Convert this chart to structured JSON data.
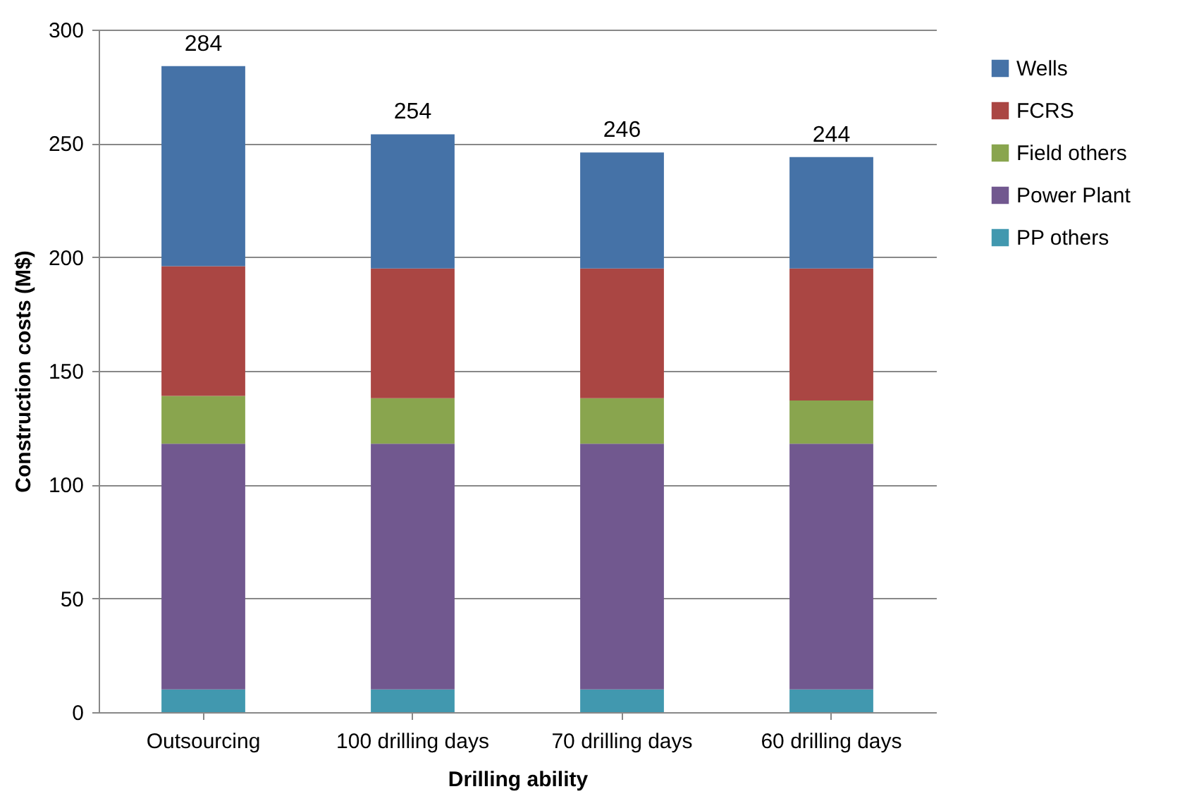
{
  "chart_data": {
    "type": "bar",
    "stacked": true,
    "xlabel": "Drilling ability",
    "ylabel": "Construction costs (M$)",
    "categories": [
      "Outsourcing",
      "100 drilling days",
      "70 drilling days",
      "60 drilling days"
    ],
    "series": [
      {
        "name": "PP others",
        "color": "#4198af",
        "values": [
          10,
          10,
          10,
          10
        ]
      },
      {
        "name": "Power Plant",
        "color": "#71588f",
        "values": [
          108,
          108,
          108,
          108
        ]
      },
      {
        "name": "Field others",
        "color": "#89a54e",
        "values": [
          21,
          20,
          20,
          19
        ]
      },
      {
        "name": "FCRS",
        "color": "#aa4643",
        "values": [
          57,
          57,
          57,
          58
        ]
      },
      {
        "name": "Wells",
        "color": "#4572a7",
        "values": [
          88,
          59,
          51,
          49
        ]
      }
    ],
    "totals": [
      "284",
      "254",
      "246",
      "244"
    ],
    "ylim": [
      0,
      300
    ],
    "yticks": [
      0,
      50,
      100,
      150,
      200,
      250,
      300
    ],
    "grid": "y",
    "legend": "right"
  }
}
